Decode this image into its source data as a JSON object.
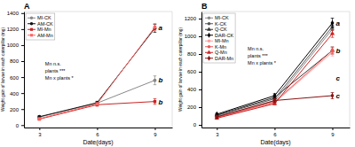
{
  "chart_data": [
    {
      "type": "line",
      "title": "A",
      "x_label": "Date(days)",
      "y_label": "Weight gain of larvae in each caterpillar (mg)",
      "x": [
        3,
        6,
        9
      ],
      "xlim": [
        2.2,
        9.9
      ],
      "xticks": [
        3,
        6,
        9
      ],
      "ylim": [
        -30,
        1420
      ],
      "yticks": [
        0,
        200,
        400,
        600,
        800,
        1000,
        1200,
        1400
      ],
      "legend": "upper left",
      "series": [
        {
          "name": "MI-CK",
          "color": "#888888",
          "marker": "circle",
          "values": [
            100,
            275,
            560
          ],
          "err": [
            8,
            15,
            55
          ]
        },
        {
          "name": "AM-CK",
          "color": "#111111",
          "marker": "circle",
          "values": [
            105,
            280,
            1210
          ],
          "err": [
            10,
            18,
            50
          ]
        },
        {
          "name": "MI-Mn",
          "color": "#cc2222",
          "marker": "square",
          "values": [
            75,
            255,
            295
          ],
          "err": [
            7,
            18,
            35
          ]
        },
        {
          "name": "AM-Mn",
          "color": "#ff6666",
          "marker": "square",
          "values": [
            80,
            265,
            1225
          ],
          "err": [
            8,
            15,
            45
          ]
        }
      ],
      "annotations": [
        {
          "text": "a",
          "x": 9.18,
          "y": 1218
        },
        {
          "text": "b",
          "x": 9.18,
          "y": 558
        },
        {
          "text": "b",
          "x": 9.18,
          "y": 290
        }
      ],
      "stats": {
        "text": "Mn n.s.\nplants ***\nMn x plants *",
        "x": 3.3,
        "y": 680
      }
    },
    {
      "type": "line",
      "title": "B",
      "x_label": "Date(days)",
      "y_label": "Weight gain of larvae in each caterpillar (mg)",
      "x": [
        3,
        6,
        9
      ],
      "xlim": [
        2.2,
        9.9
      ],
      "xticks": [
        3,
        6,
        9
      ],
      "ylim": [
        -30,
        1280
      ],
      "yticks": [
        0,
        200,
        400,
        600,
        800,
        1000,
        1200
      ],
      "legend": "upper left",
      "series": [
        {
          "name": "MI-CK",
          "color": "#888888",
          "marker": "circle",
          "values": [
            95,
            270,
            1080
          ],
          "err": [
            8,
            18,
            45
          ]
        },
        {
          "name": "K-CK",
          "color": "#555555",
          "marker": "circle",
          "values": [
            105,
            295,
            1110
          ],
          "err": [
            10,
            20,
            42
          ]
        },
        {
          "name": "Q-CK",
          "color": "#333333",
          "marker": "triangle",
          "values": [
            110,
            310,
            840
          ],
          "err": [
            9,
            16,
            40
          ]
        },
        {
          "name": "DAR-CK",
          "color": "#000000",
          "marker": "diamond",
          "values": [
            120,
            330,
            1150
          ],
          "err": [
            11,
            22,
            55
          ]
        },
        {
          "name": "MI-Mn",
          "color": "#ff9999",
          "marker": "circle",
          "values": [
            80,
            250,
            820
          ],
          "err": [
            7,
            18,
            42
          ]
        },
        {
          "name": "K-Mn",
          "color": "#ee5555",
          "marker": "circle",
          "values": [
            85,
            260,
            840
          ],
          "err": [
            8,
            15,
            38
          ]
        },
        {
          "name": "Q-Mn",
          "color": "#cc2222",
          "marker": "triangle",
          "values": [
            75,
            240,
            1030
          ],
          "err": [
            7,
            14,
            42
          ]
        },
        {
          "name": "DAR-Mn",
          "color": "#881111",
          "marker": "diamond",
          "values": [
            90,
            275,
            330
          ],
          "err": [
            9,
            20,
            35
          ]
        }
      ],
      "annotations": [
        {
          "text": "a",
          "x": 9.18,
          "y": 1148
        },
        {
          "text": "b",
          "x": 9.18,
          "y": 840
        },
        {
          "text": "c",
          "x": 9.18,
          "y": 530
        },
        {
          "text": "c",
          "x": 9.18,
          "y": 330
        }
      ],
      "stats": {
        "text": "Mn n.s.\nplants ***\nMn x plants *",
        "x": 4.6,
        "y": 780
      }
    }
  ]
}
